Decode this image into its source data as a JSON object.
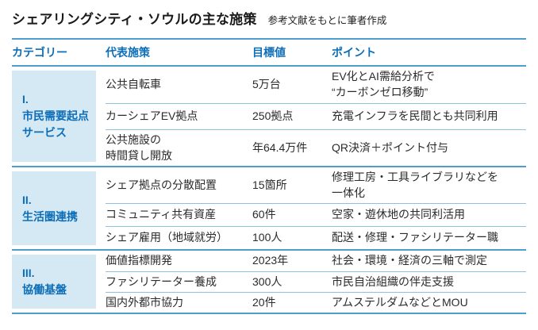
{
  "title": "シェアリングシティ・ソウルの主な施策",
  "subtitle": "参考文献をもとに筆者作成",
  "colors": {
    "accent_blue": "#0d6eb8",
    "line_strong": "#4d9ecf",
    "line_light": "#8cc1e0",
    "category_cell_bg": "#d5e9f5",
    "body_text": "#2b2b2b"
  },
  "table": {
    "headers": [
      "カテゴリー",
      "代表施策",
      "目標値",
      "ポイント"
    ],
    "sections": [
      {
        "category": "I.\n市民需要起点\nサービス",
        "rows": [
          {
            "measure": "公共自転車",
            "target": "5万台",
            "point": "EV化とAI需給分析で\n“カーボンゼロ移動”"
          },
          {
            "measure": "カーシェアEV拠点",
            "target": "250拠点",
            "point": "充電インフラを民間とも共同利用"
          },
          {
            "measure": "公共施設の\n時間貸し開放",
            "target": "年64.4万件",
            "point": "QR決済＋ポイント付与"
          }
        ]
      },
      {
        "category": "II.\n生活圏連携",
        "rows": [
          {
            "measure": "シェア拠点の分散配置",
            "target": "15箇所",
            "point": "修理工房・工具ライブラリなどを\n一体化"
          },
          {
            "measure": "コミュニティ共有資産",
            "target": "60件",
            "point": "空家・遊休地の共同利活用"
          },
          {
            "measure": "シェア雇用（地域就労）",
            "target": "100人",
            "point": "配送・修理・ファシリテーター職"
          }
        ]
      },
      {
        "category": "III.\n協働基盤",
        "rows": [
          {
            "measure": "価値指標開発",
            "target": "2023年",
            "point": "社会・環境・経済の三軸で測定"
          },
          {
            "measure": "ファシリテーター養成",
            "target": "300人",
            "point": "市民自治組織の伴走支援"
          },
          {
            "measure": "国内外都市協力",
            "target": "20件",
            "point": "アムステルダムなどとMOU"
          }
        ]
      }
    ]
  },
  "chart_data": {
    "type": "table",
    "title": "シェアリングシティ・ソウルの主な施策",
    "subtitle": "参考文献をもとに筆者作成",
    "columns": [
      "カテゴリー",
      "代表施策",
      "目標値",
      "ポイント"
    ],
    "rows": [
      [
        "I. 市民需要起点サービス",
        "公共自転車",
        "5万台",
        "EV化とAI需給分析で“カーボンゼロ移動”"
      ],
      [
        "I. 市民需要起点サービス",
        "カーシェアEV拠点",
        "250拠点",
        "充電インフラを民間とも共同利用"
      ],
      [
        "I. 市民需要起点サービス",
        "公共施設の時間貸し開放",
        "年64.4万件",
        "QR決済＋ポイント付与"
      ],
      [
        "II. 生活圏連携",
        "シェア拠点の分散配置",
        "15箇所",
        "修理工房・工具ライブラリなどを一体化"
      ],
      [
        "II. 生活圏連携",
        "コミュニティ共有資産",
        "60件",
        "空家・遊休地の共同利活用"
      ],
      [
        "II. 生活圏連携",
        "シェア雇用（地域就労）",
        "100人",
        "配送・修理・ファシリテーター職"
      ],
      [
        "III. 協働基盤",
        "価値指標開発",
        "2023年",
        "社会・環境・経済の三軸で測定"
      ],
      [
        "III. 協働基盤",
        "ファシリテーター養成",
        "300人",
        "市民自治組織の伴走支援"
      ],
      [
        "III. 協働基盤",
        "国内外都市協力",
        "20件",
        "アムステルダムなどとMOU"
      ]
    ],
    "layout": {
      "category_column_highlighted": true,
      "header_text_color": "#0d6eb8",
      "section_divider_color": "#4d9ecf",
      "row_divider_color": "#8cc1e0"
    }
  }
}
